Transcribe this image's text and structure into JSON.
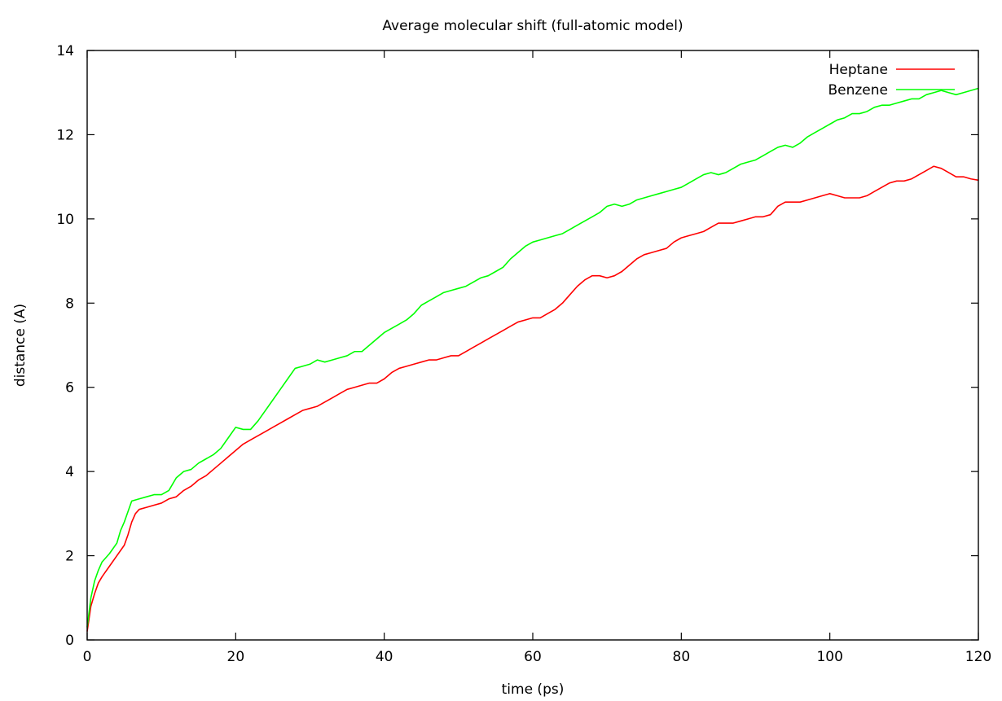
{
  "chart_data": {
    "type": "line",
    "title": "Average molecular shift (full-atomic model)",
    "xlabel": "time (ps)",
    "ylabel": "distance (A)",
    "xlim": [
      0,
      120
    ],
    "ylim": [
      0,
      14
    ],
    "xticks": [
      0,
      20,
      40,
      60,
      80,
      100,
      120
    ],
    "yticks": [
      0,
      2,
      4,
      6,
      8,
      10,
      12,
      14
    ],
    "grid": false,
    "legend_position": "top-right",
    "series": [
      {
        "name": "Heptane",
        "color": "#ff0000",
        "points": [
          [
            0,
            0.2
          ],
          [
            0.5,
            0.8
          ],
          [
            1,
            1.1
          ],
          [
            1.5,
            1.35
          ],
          [
            2,
            1.5
          ],
          [
            3,
            1.75
          ],
          [
            4,
            2.0
          ],
          [
            5,
            2.25
          ],
          [
            5.5,
            2.5
          ],
          [
            6,
            2.8
          ],
          [
            6.5,
            3.0
          ],
          [
            7,
            3.1
          ],
          [
            8,
            3.15
          ],
          [
            9,
            3.2
          ],
          [
            10,
            3.25
          ],
          [
            11,
            3.35
          ],
          [
            12,
            3.4
          ],
          [
            13,
            3.55
          ],
          [
            14,
            3.65
          ],
          [
            15,
            3.8
          ],
          [
            16,
            3.9
          ],
          [
            17,
            4.05
          ],
          [
            18,
            4.2
          ],
          [
            19,
            4.35
          ],
          [
            20,
            4.5
          ],
          [
            21,
            4.65
          ],
          [
            22,
            4.75
          ],
          [
            23,
            4.85
          ],
          [
            24,
            4.95
          ],
          [
            25,
            5.05
          ],
          [
            26,
            5.15
          ],
          [
            27,
            5.25
          ],
          [
            28,
            5.35
          ],
          [
            29,
            5.45
          ],
          [
            30,
            5.5
          ],
          [
            31,
            5.55
          ],
          [
            32,
            5.65
          ],
          [
            33,
            5.75
          ],
          [
            34,
            5.85
          ],
          [
            35,
            5.95
          ],
          [
            36,
            6.0
          ],
          [
            37,
            6.05
          ],
          [
            38,
            6.1
          ],
          [
            39,
            6.1
          ],
          [
            40,
            6.2
          ],
          [
            41,
            6.35
          ],
          [
            42,
            6.45
          ],
          [
            43,
            6.5
          ],
          [
            44,
            6.55
          ],
          [
            45,
            6.6
          ],
          [
            46,
            6.65
          ],
          [
            47,
            6.65
          ],
          [
            48,
            6.7
          ],
          [
            49,
            6.75
          ],
          [
            50,
            6.75
          ],
          [
            51,
            6.85
          ],
          [
            52,
            6.95
          ],
          [
            53,
            7.05
          ],
          [
            54,
            7.15
          ],
          [
            55,
            7.25
          ],
          [
            56,
            7.35
          ],
          [
            57,
            7.45
          ],
          [
            58,
            7.55
          ],
          [
            59,
            7.6
          ],
          [
            60,
            7.65
          ],
          [
            61,
            7.65
          ],
          [
            62,
            7.75
          ],
          [
            63,
            7.85
          ],
          [
            64,
            8.0
          ],
          [
            65,
            8.2
          ],
          [
            66,
            8.4
          ],
          [
            67,
            8.55
          ],
          [
            68,
            8.65
          ],
          [
            69,
            8.65
          ],
          [
            70,
            8.6
          ],
          [
            71,
            8.65
          ],
          [
            72,
            8.75
          ],
          [
            73,
            8.9
          ],
          [
            74,
            9.05
          ],
          [
            75,
            9.15
          ],
          [
            76,
            9.2
          ],
          [
            77,
            9.25
          ],
          [
            78,
            9.3
          ],
          [
            79,
            9.45
          ],
          [
            80,
            9.55
          ],
          [
            81,
            9.6
          ],
          [
            82,
            9.65
          ],
          [
            83,
            9.7
          ],
          [
            84,
            9.8
          ],
          [
            85,
            9.9
          ],
          [
            86,
            9.9
          ],
          [
            87,
            9.9
          ],
          [
            88,
            9.95
          ],
          [
            89,
            10.0
          ],
          [
            90,
            10.05
          ],
          [
            91,
            10.05
          ],
          [
            92,
            10.1
          ],
          [
            93,
            10.3
          ],
          [
            94,
            10.4
          ],
          [
            95,
            10.4
          ],
          [
            96,
            10.4
          ],
          [
            97,
            10.45
          ],
          [
            98,
            10.5
          ],
          [
            99,
            10.55
          ],
          [
            100,
            10.6
          ],
          [
            101,
            10.55
          ],
          [
            102,
            10.5
          ],
          [
            103,
            10.5
          ],
          [
            104,
            10.5
          ],
          [
            105,
            10.55
          ],
          [
            106,
            10.65
          ],
          [
            107,
            10.75
          ],
          [
            108,
            10.85
          ],
          [
            109,
            10.9
          ],
          [
            110,
            10.9
          ],
          [
            111,
            10.95
          ],
          [
            112,
            11.05
          ],
          [
            113,
            11.15
          ],
          [
            114,
            11.25
          ],
          [
            115,
            11.2
          ],
          [
            116,
            11.1
          ],
          [
            117,
            11.0
          ],
          [
            118,
            11.0
          ],
          [
            119,
            10.95
          ],
          [
            120,
            10.92
          ]
        ]
      },
      {
        "name": "Benzene",
        "color": "#00ff00",
        "points": [
          [
            0,
            0.3
          ],
          [
            0.5,
            1.0
          ],
          [
            1,
            1.4
          ],
          [
            1.5,
            1.65
          ],
          [
            2,
            1.85
          ],
          [
            3,
            2.05
          ],
          [
            4,
            2.3
          ],
          [
            4.5,
            2.6
          ],
          [
            5,
            2.8
          ],
          [
            5.5,
            3.05
          ],
          [
            6,
            3.3
          ],
          [
            7,
            3.35
          ],
          [
            8,
            3.4
          ],
          [
            9,
            3.45
          ],
          [
            10,
            3.45
          ],
          [
            11,
            3.55
          ],
          [
            12,
            3.85
          ],
          [
            13,
            4.0
          ],
          [
            14,
            4.05
          ],
          [
            15,
            4.2
          ],
          [
            16,
            4.3
          ],
          [
            17,
            4.4
          ],
          [
            18,
            4.55
          ],
          [
            19,
            4.8
          ],
          [
            20,
            5.05
          ],
          [
            21,
            5.0
          ],
          [
            22,
            5.0
          ],
          [
            23,
            5.2
          ],
          [
            24,
            5.45
          ],
          [
            25,
            5.7
          ],
          [
            26,
            5.95
          ],
          [
            27,
            6.2
          ],
          [
            28,
            6.45
          ],
          [
            29,
            6.5
          ],
          [
            30,
            6.55
          ],
          [
            31,
            6.65
          ],
          [
            32,
            6.6
          ],
          [
            33,
            6.65
          ],
          [
            34,
            6.7
          ],
          [
            35,
            6.75
          ],
          [
            36,
            6.85
          ],
          [
            37,
            6.85
          ],
          [
            38,
            7.0
          ],
          [
            39,
            7.15
          ],
          [
            40,
            7.3
          ],
          [
            41,
            7.4
          ],
          [
            42,
            7.5
          ],
          [
            43,
            7.6
          ],
          [
            44,
            7.75
          ],
          [
            45,
            7.95
          ],
          [
            46,
            8.05
          ],
          [
            47,
            8.15
          ],
          [
            48,
            8.25
          ],
          [
            49,
            8.3
          ],
          [
            50,
            8.35
          ],
          [
            51,
            8.4
          ],
          [
            52,
            8.5
          ],
          [
            53,
            8.6
          ],
          [
            54,
            8.65
          ],
          [
            55,
            8.75
          ],
          [
            56,
            8.85
          ],
          [
            57,
            9.05
          ],
          [
            58,
            9.2
          ],
          [
            59,
            9.35
          ],
          [
            60,
            9.45
          ],
          [
            61,
            9.5
          ],
          [
            62,
            9.55
          ],
          [
            63,
            9.6
          ],
          [
            64,
            9.65
          ],
          [
            65,
            9.75
          ],
          [
            66,
            9.85
          ],
          [
            67,
            9.95
          ],
          [
            68,
            10.05
          ],
          [
            69,
            10.15
          ],
          [
            70,
            10.3
          ],
          [
            71,
            10.35
          ],
          [
            72,
            10.3
          ],
          [
            73,
            10.35
          ],
          [
            74,
            10.45
          ],
          [
            75,
            10.5
          ],
          [
            76,
            10.55
          ],
          [
            77,
            10.6
          ],
          [
            78,
            10.65
          ],
          [
            79,
            10.7
          ],
          [
            80,
            10.75
          ],
          [
            81,
            10.85
          ],
          [
            82,
            10.95
          ],
          [
            83,
            11.05
          ],
          [
            84,
            11.1
          ],
          [
            85,
            11.05
          ],
          [
            86,
            11.1
          ],
          [
            87,
            11.2
          ],
          [
            88,
            11.3
          ],
          [
            89,
            11.35
          ],
          [
            90,
            11.4
          ],
          [
            91,
            11.5
          ],
          [
            92,
            11.6
          ],
          [
            93,
            11.7
          ],
          [
            94,
            11.75
          ],
          [
            95,
            11.7
          ],
          [
            96,
            11.8
          ],
          [
            97,
            11.95
          ],
          [
            98,
            12.05
          ],
          [
            99,
            12.15
          ],
          [
            100,
            12.25
          ],
          [
            101,
            12.35
          ],
          [
            102,
            12.4
          ],
          [
            103,
            12.5
          ],
          [
            104,
            12.5
          ],
          [
            105,
            12.55
          ],
          [
            106,
            12.65
          ],
          [
            107,
            12.7
          ],
          [
            108,
            12.7
          ],
          [
            109,
            12.75
          ],
          [
            110,
            12.8
          ],
          [
            111,
            12.85
          ],
          [
            112,
            12.85
          ],
          [
            113,
            12.95
          ],
          [
            114,
            13.0
          ],
          [
            115,
            13.05
          ],
          [
            116,
            13.0
          ],
          [
            117,
            12.95
          ],
          [
            118,
            13.0
          ],
          [
            119,
            13.05
          ],
          [
            120,
            13.1
          ]
        ]
      }
    ]
  }
}
